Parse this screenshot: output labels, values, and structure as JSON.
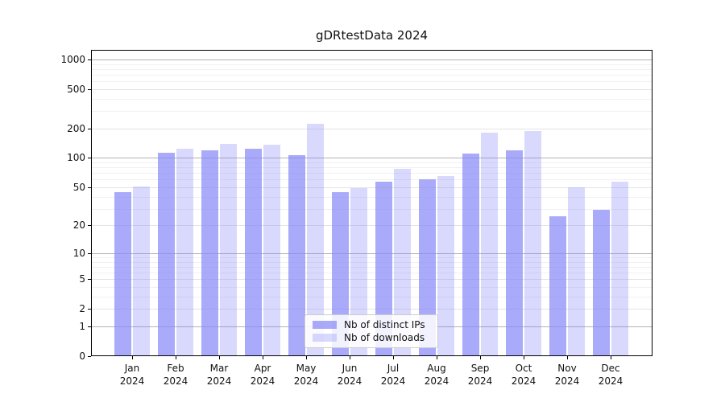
{
  "title": "gDRtestData 2024",
  "legend": {
    "items": [
      {
        "label": "Nb of distinct IPs"
      },
      {
        "label": "Nb of downloads"
      }
    ]
  },
  "colors": {
    "bar_distinct_ips": "rgba(137,137,248,0.72)",
    "bar_downloads": "rgba(137,137,248,0.32)",
    "grid_major": "#b2b2b2",
    "grid_labeled": "#e3e3e3",
    "grid_minor": "#f1f1f1",
    "axis": "#000000",
    "text": "#111111"
  },
  "chart_data": {
    "type": "bar",
    "title": "gDRtestData 2024",
    "categories": [
      "Jan 2024",
      "Feb 2024",
      "Mar 2024",
      "Apr 2024",
      "May 2024",
      "Jun 2024",
      "Jul 2024",
      "Aug 2024",
      "Sep 2024",
      "Oct 2024",
      "Nov 2024",
      "Dec 2024"
    ],
    "series": [
      {
        "name": "Nb of distinct IPs",
        "color": "rgba(137,137,248,0.72)",
        "values": [
          45,
          113,
          119,
          125,
          107,
          45,
          57,
          60,
          111,
          119,
          25,
          29
        ]
      },
      {
        "name": "Nb of downloads",
        "color": "rgba(137,137,248,0.32)",
        "values": [
          51,
          125,
          140,
          137,
          222,
          49,
          78,
          65,
          181,
          189,
          50,
          57
        ]
      }
    ],
    "xlabel": "",
    "ylabel": "",
    "yscale": "log1p",
    "yticks": [
      0,
      1,
      2,
      5,
      10,
      20,
      50,
      100,
      200,
      500,
      1000
    ],
    "ylim": [
      0,
      1250
    ],
    "grid": true,
    "legend_position": "lower center"
  }
}
